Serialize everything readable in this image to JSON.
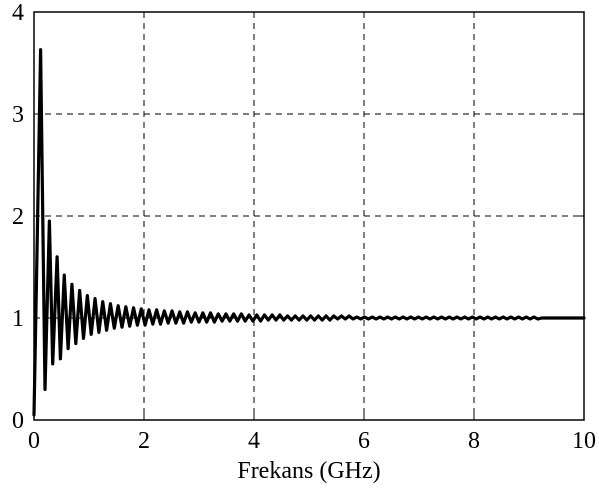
{
  "chart_data": {
    "type": "line",
    "title": "",
    "xlabel": "Frekans (GHz)",
    "ylabel": "",
    "xlim": [
      0,
      10
    ],
    "ylim": [
      0,
      4
    ],
    "xticks": [
      0,
      2,
      4,
      6,
      8,
      10
    ],
    "xtick_labels": [
      "0",
      "2",
      "4",
      "6",
      "8",
      "10"
    ],
    "yticks": [
      0,
      1,
      2,
      3,
      4
    ],
    "ytick_labels": [
      "0",
      "1",
      "2",
      "3",
      "4"
    ],
    "grid": true,
    "series": [
      {
        "color": "#000000",
        "x": [
          0,
          0.05,
          0.12,
          0.2,
          0.28,
          0.34,
          0.42,
          0.48,
          0.55,
          0.62,
          0.69,
          0.76,
          0.83,
          0.9,
          0.97,
          1.04,
          1.11,
          1.18,
          1.25,
          1.32,
          1.39,
          1.46,
          1.53,
          1.6,
          1.67,
          1.74,
          1.81,
          1.88,
          1.95,
          2.02,
          2.09,
          2.16,
          2.23,
          2.3,
          2.37,
          2.44,
          2.51,
          2.58,
          2.65,
          2.72,
          2.79,
          2.86,
          2.93,
          3.0,
          3.07,
          3.14,
          3.21,
          3.28,
          3.35,
          3.42,
          3.49,
          3.56,
          3.63,
          3.7,
          3.77,
          3.84,
          3.91,
          3.98,
          4.05,
          4.12,
          4.19,
          4.26,
          4.33,
          4.4,
          4.47,
          4.54,
          4.61,
          4.68,
          4.75,
          4.82,
          4.89,
          4.96,
          5.03,
          5.1,
          5.17,
          5.24,
          5.31,
          5.38,
          5.45,
          5.52,
          5.59,
          5.66,
          5.73,
          5.8,
          5.87,
          5.94,
          6.01,
          6.08,
          6.15,
          6.22,
          6.29,
          6.36,
          6.43,
          6.5,
          6.57,
          6.64,
          6.71,
          6.78,
          6.85,
          6.92,
          6.99,
          7.06,
          7.13,
          7.2,
          7.27,
          7.34,
          7.41,
          7.48,
          7.55,
          7.62,
          7.69,
          7.76,
          7.83,
          7.9,
          7.97,
          8.04,
          8.11,
          8.18,
          8.25,
          8.32,
          8.39,
          8.46,
          8.53,
          8.6,
          8.67,
          8.74,
          8.81,
          8.88,
          8.95,
          9.02,
          9.09,
          9.16,
          9.23,
          9.3,
          9.4,
          9.6,
          9.8,
          10.0
        ],
        "y": [
          0.05,
          1.5,
          3.63,
          0.3,
          1.95,
          0.55,
          1.6,
          0.6,
          1.42,
          0.7,
          1.33,
          0.75,
          1.27,
          0.8,
          1.22,
          0.84,
          1.19,
          0.86,
          1.16,
          0.88,
          1.14,
          0.9,
          1.12,
          0.91,
          1.11,
          0.92,
          1.1,
          0.93,
          1.09,
          0.93,
          1.08,
          0.94,
          1.08,
          0.94,
          1.07,
          0.95,
          1.07,
          0.95,
          1.06,
          0.95,
          1.06,
          0.96,
          1.05,
          0.96,
          1.05,
          0.96,
          1.05,
          0.96,
          1.04,
          0.97,
          1.04,
          0.97,
          1.04,
          0.97,
          1.04,
          0.97,
          1.03,
          0.97,
          1.03,
          0.97,
          1.03,
          0.98,
          1.03,
          0.98,
          1.03,
          0.98,
          1.02,
          0.98,
          1.02,
          0.98,
          1.02,
          0.98,
          1.02,
          0.98,
          1.02,
          0.98,
          1.02,
          0.98,
          1.02,
          0.99,
          1.02,
          0.99,
          1.02,
          0.99,
          1.01,
          0.99,
          1.01,
          0.99,
          1.01,
          0.99,
          1.01,
          0.99,
          1.01,
          0.99,
          1.01,
          0.99,
          1.01,
          0.99,
          1.01,
          0.99,
          1.01,
          0.99,
          1.01,
          0.99,
          1.01,
          0.99,
          1.01,
          0.99,
          1.01,
          0.99,
          1.01,
          0.99,
          1.01,
          0.99,
          1.01,
          0.99,
          1.01,
          0.99,
          1.01,
          0.99,
          1.01,
          0.99,
          1.01,
          0.99,
          1.01,
          0.99,
          1.01,
          0.99,
          1.01,
          0.99,
          1.01,
          0.99,
          1.0,
          1.0,
          1.0,
          1.0,
          1.0,
          1.0
        ]
      }
    ]
  }
}
